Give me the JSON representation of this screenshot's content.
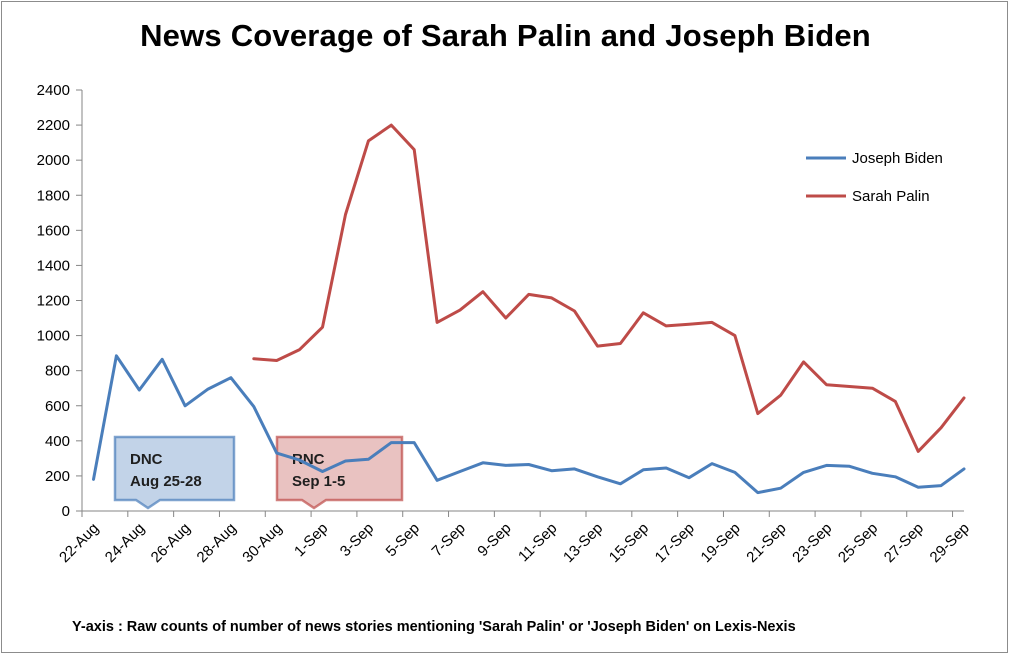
{
  "chart_data": {
    "type": "line",
    "title": "News Coverage of Sarah Palin and Joseph Biden",
    "footnote": "Y-axis : Raw counts of number of news stories mentioning 'Sarah Palin' or 'Joseph Biden' on Lexis-Nexis",
    "ylim": [
      0,
      2400
    ],
    "yticks": [
      0,
      200,
      400,
      600,
      800,
      1000,
      1200,
      1400,
      1600,
      1800,
      2000,
      2200,
      2400
    ],
    "categories": [
      "22-Aug",
      "23-Aug",
      "24-Aug",
      "25-Aug",
      "26-Aug",
      "27-Aug",
      "28-Aug",
      "29-Aug",
      "30-Aug",
      "31-Aug",
      "1-Sep",
      "2-Sep",
      "3-Sep",
      "4-Sep",
      "5-Sep",
      "6-Sep",
      "7-Sep",
      "8-Sep",
      "9-Sep",
      "10-Sep",
      "11-Sep",
      "12-Sep",
      "13-Sep",
      "14-Sep",
      "15-Sep",
      "16-Sep",
      "17-Sep",
      "18-Sep",
      "19-Sep",
      "20-Sep",
      "21-Sep",
      "22-Sep",
      "23-Sep",
      "24-Sep",
      "25-Sep",
      "26-Sep",
      "27-Sep",
      "28-Sep",
      "29-Sep"
    ],
    "xtick_labels": [
      "22-Aug",
      "24-Aug",
      "26-Aug",
      "28-Aug",
      "30-Aug",
      "1-Sep",
      "3-Sep",
      "5-Sep",
      "7-Sep",
      "9-Sep",
      "11-Sep",
      "13-Sep",
      "15-Sep",
      "17-Sep",
      "19-Sep",
      "21-Sep",
      "23-Sep",
      "25-Sep",
      "27-Sep",
      "29-Sep"
    ],
    "series": [
      {
        "name": "Joseph Biden",
        "color": "#4a7ebb",
        "values": [
          180,
          885,
          690,
          865,
          600,
          695,
          760,
          595,
          330,
          290,
          225,
          285,
          295,
          390,
          390,
          175,
          225,
          275,
          260,
          265,
          230,
          240,
          195,
          155,
          235,
          245,
          190,
          270,
          220,
          105,
          130,
          220,
          260,
          255,
          215,
          195,
          135,
          145,
          240
        ]
      },
      {
        "name": "Sarah Palin",
        "color": "#be4b48",
        "values": [
          null,
          null,
          null,
          null,
          null,
          null,
          null,
          868,
          858,
          920,
          1048,
          1690,
          2110,
          2200,
          2060,
          1075,
          1145,
          1250,
          1100,
          1235,
          1215,
          1140,
          940,
          955,
          1130,
          1055,
          1065,
          1075,
          1000,
          555,
          660,
          850,
          720,
          710,
          700,
          625,
          340,
          475,
          645
        ]
      }
    ],
    "legend": {
      "placement": "top-right"
    },
    "annotations": [
      {
        "lines": [
          "DNC",
          "Aug 25-28"
        ],
        "color": "#4a7ebb",
        "period": [
          "25-Aug",
          "28-Aug"
        ]
      },
      {
        "lines": [
          "RNC",
          "Sep 1-5"
        ],
        "color": "#be4b48",
        "period": [
          "1-Sep",
          "5-Sep"
        ]
      }
    ]
  }
}
